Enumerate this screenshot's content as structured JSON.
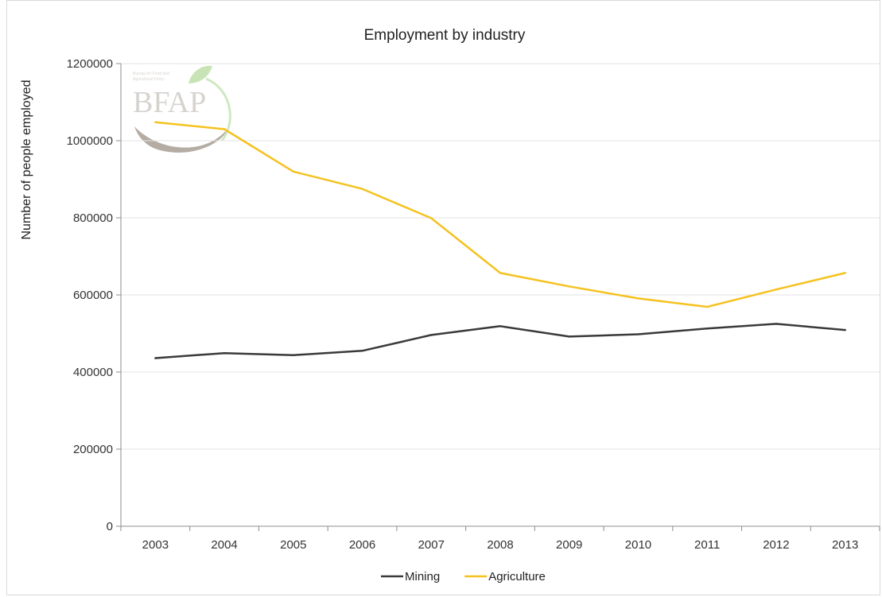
{
  "chart_data": {
    "type": "line",
    "title": "Employment by industry",
    "xlabel": "",
    "ylabel": "Number of people employed",
    "x": [
      "2003",
      "2004",
      "2005",
      "2006",
      "2007",
      "2008",
      "2009",
      "2010",
      "2011",
      "2012",
      "2013"
    ],
    "ylim": [
      0,
      1200000
    ],
    "yticks": [
      0,
      200000,
      400000,
      600000,
      800000,
      1000000,
      1200000
    ],
    "ytick_labels": [
      "0",
      "200000",
      "400000",
      "600000",
      "800000",
      "1000000",
      "1200000"
    ],
    "grid": true,
    "legend_position": "bottom",
    "series": [
      {
        "name": "Mining",
        "color": "#3a3a3a",
        "values": [
          436000,
          449000,
          444000,
          455000,
          496000,
          519000,
          492000,
          498000,
          513000,
          525000,
          509000
        ]
      },
      {
        "name": "Agriculture",
        "color": "#f5c220",
        "values": [
          1048000,
          1030000,
          920000,
          875000,
          799000,
          657000,
          622000,
          591000,
          569000,
          614000,
          657000
        ]
      }
    ]
  },
  "watermark": {
    "logo_text": "BFAP",
    "logo_subtext_line1": "Bureau for Food and",
    "logo_subtext_line2": "Agricultural Policy"
  }
}
